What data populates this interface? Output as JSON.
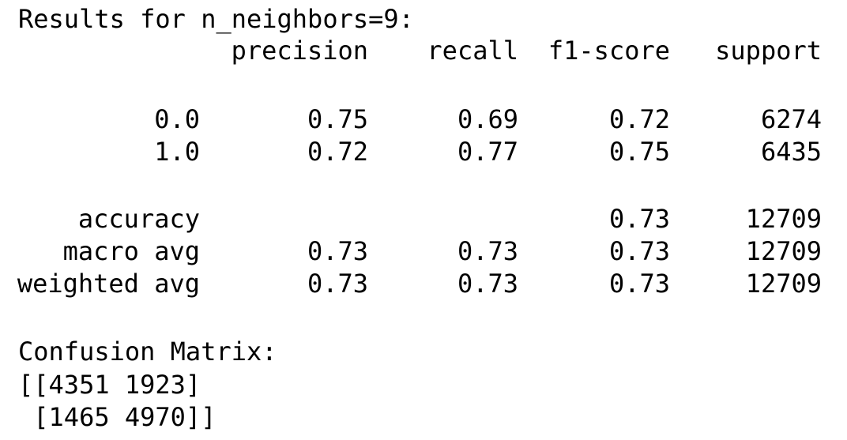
{
  "report": {
    "heading": "Results for n_neighbors=9:",
    "columns": [
      "precision",
      "recall",
      "f1-score",
      "support"
    ],
    "rows": [
      {
        "label": "0.0",
        "precision": "0.75",
        "recall": "0.69",
        "f1": "0.72",
        "support": "6274"
      },
      {
        "label": "1.0",
        "precision": "0.72",
        "recall": "0.77",
        "f1": "0.75",
        "support": "6435"
      }
    ],
    "summary": [
      {
        "label": "accuracy",
        "precision": "",
        "recall": "",
        "f1": "0.73",
        "support": "12709"
      },
      {
        "label": "macro avg",
        "precision": "0.73",
        "recall": "0.73",
        "f1": "0.73",
        "support": "12709"
      },
      {
        "label": "weighted avg",
        "precision": "0.73",
        "recall": "0.73",
        "f1": "0.73",
        "support": "12709"
      }
    ]
  },
  "confusion": {
    "heading": "Confusion Matrix:",
    "line1": "[[4351 1923]",
    "line2": " [1465 4970]]"
  }
}
